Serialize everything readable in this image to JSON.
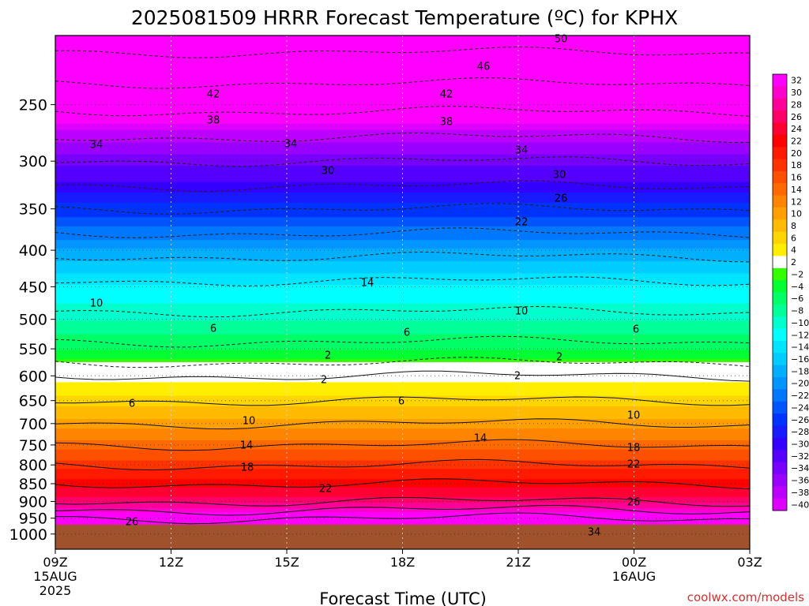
{
  "chart_data": {
    "type": "heatmap",
    "title": "2025081509 HRRR Forecast Temperature (ºC) for KPHX",
    "xlabel": "Forecast Time (UTC)",
    "ylabel": "",
    "x_ticks": [
      {
        "label": "09Z",
        "sub1": "15AUG",
        "sub2": "2025",
        "hour": 0
      },
      {
        "label": "12Z",
        "sub1": "",
        "sub2": "",
        "hour": 3
      },
      {
        "label": "15Z",
        "sub1": "",
        "sub2": "",
        "hour": 6
      },
      {
        "label": "18Z",
        "sub1": "",
        "sub2": "",
        "hour": 9
      },
      {
        "label": "21Z",
        "sub1": "",
        "sub2": "",
        "hour": 12
      },
      {
        "label": "00Z",
        "sub1": "16AUG",
        "sub2": "",
        "hour": 15
      },
      {
        "label": "03Z",
        "sub1": "",
        "sub2": "",
        "hour": 18
      }
    ],
    "y_ticks": [
      250,
      300,
      350,
      400,
      450,
      500,
      550,
      600,
      650,
      700,
      750,
      800,
      850,
      900,
      950,
      1000
    ],
    "y_scale": "log-pressure",
    "x_range_hours": [
      0,
      18
    ],
    "y_range_hpa": [
      200,
      1050
    ],
    "ground_pressure_hpa": 970,
    "colorbar": {
      "labels": [
        "32",
        "30",
        "28",
        "26",
        "24",
        "22",
        "20",
        "18",
        "16",
        "14",
        "12",
        "10",
        "8",
        "6",
        "4",
        "2",
        "−2",
        "−4",
        "−6",
        "−8",
        "−10",
        "−12",
        "−14",
        "−16",
        "−18",
        "−20",
        "−22",
        "−24",
        "−26",
        "−28",
        "−30",
        "−32",
        "−34",
        "−36",
        "−38",
        "−40"
      ],
      "colors": [
        "#ff00ff",
        "#ff00cc",
        "#ff0099",
        "#ff0066",
        "#ff0033",
        "#ff0000",
        "#ff1a00",
        "#ff3300",
        "#ff5000",
        "#ff6a00",
        "#ff8500",
        "#ffa000",
        "#ffbb00",
        "#ffd500",
        "#ffee00",
        "#ffffff",
        "#33ff00",
        "#00ff33",
        "#00ff66",
        "#00ff99",
        "#00ffcc",
        "#00ffff",
        "#00e5ff",
        "#00ccff",
        "#00b0ff",
        "#0095ff",
        "#0077ff",
        "#0055ff",
        "#0033ff",
        "#1a1aff",
        "#3300ff",
        "#5500ff",
        "#7700ff",
        "#9900ff",
        "#bb00ff",
        "#dd00ff"
      ]
    },
    "contour_labels": [
      "50",
      "46",
      "42",
      "42",
      "38",
      "38",
      "34",
      "34",
      "34",
      "30",
      "30",
      "26",
      "22",
      "14",
      "10",
      "10",
      "6",
      "6",
      "6",
      "2",
      "2",
      "2",
      "2",
      "6",
      "6",
      "10",
      "10",
      "14",
      "14",
      "18",
      "18",
      "22",
      "22",
      "26",
      "26",
      "34"
    ],
    "temperature_profile": [
      {
        "p": 200,
        "t": -52
      },
      {
        "p": 250,
        "t": -43
      },
      {
        "p": 300,
        "t": -34
      },
      {
        "p": 350,
        "t": -26
      },
      {
        "p": 400,
        "t": -19
      },
      {
        "p": 450,
        "t": -13
      },
      {
        "p": 500,
        "t": -9
      },
      {
        "p": 550,
        "t": -5
      },
      {
        "p": 575,
        "t": -2
      },
      {
        "p": 600,
        "t": 2
      },
      {
        "p": 650,
        "t": 6
      },
      {
        "p": 700,
        "t": 10
      },
      {
        "p": 750,
        "t": 14
      },
      {
        "p": 800,
        "t": 18
      },
      {
        "p": 850,
        "t": 22
      },
      {
        "p": 900,
        "t": 26
      },
      {
        "p": 950,
        "t": 34
      }
    ]
  },
  "footer": {
    "credit": "coolwx.com/models"
  },
  "colors": {
    "ground": "#a0522d",
    "credit": "#cc3333"
  }
}
